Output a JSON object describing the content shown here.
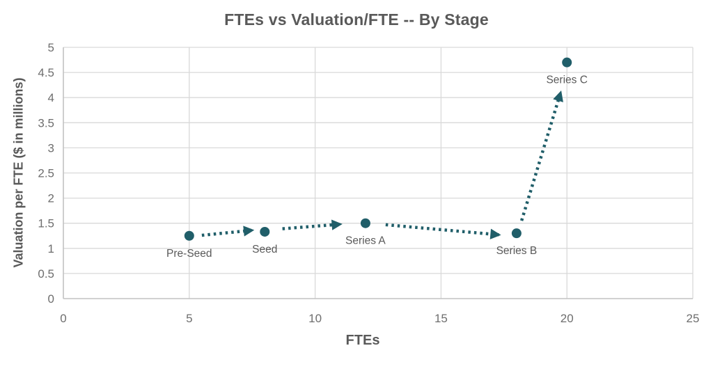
{
  "title": "FTEs vs Valuation/FTE -- By Stage",
  "chart_data": {
    "type": "scatter",
    "title": "FTEs vs Valuation/FTE -- By Stage",
    "xlabel": "FTEs",
    "ylabel": "Valuation per FTE ($ in millions)",
    "xlim": [
      0,
      25
    ],
    "ylim": [
      0,
      5
    ],
    "xticks": [
      0,
      5,
      10,
      15,
      20,
      25
    ],
    "yticks": [
      0,
      0.5,
      1,
      1.5,
      2,
      2.5,
      3,
      3.5,
      4,
      4.5,
      5
    ],
    "grid": true,
    "legend": "none",
    "points": [
      {
        "label": "Pre-Seed",
        "x": 5,
        "y": 1.25
      },
      {
        "label": "Seed",
        "x": 8,
        "y": 1.33
      },
      {
        "label": "Series A",
        "x": 12,
        "y": 1.5
      },
      {
        "label": "Series B",
        "x": 18,
        "y": 1.3
      },
      {
        "label": "Series C",
        "x": 20,
        "y": 4.7
      }
    ],
    "arrows": [
      {
        "from": [
          5.5,
          1.26
        ],
        "to": [
          7.5,
          1.36
        ]
      },
      {
        "from": [
          8.7,
          1.39
        ],
        "to": [
          11.0,
          1.48
        ]
      },
      {
        "from": [
          12.8,
          1.47
        ],
        "to": [
          17.3,
          1.27
        ]
      },
      {
        "from": [
          18.2,
          1.55
        ],
        "to": [
          19.75,
          4.1
        ]
      }
    ],
    "colors": {
      "marker": "#205e69",
      "arrow": "#205e69",
      "grid": "#d9d9d9",
      "axis_line": "#c2c2c2",
      "tick_text": "#6e6e6e",
      "title_text": "#595959",
      "point_label_text": "#595959"
    }
  }
}
